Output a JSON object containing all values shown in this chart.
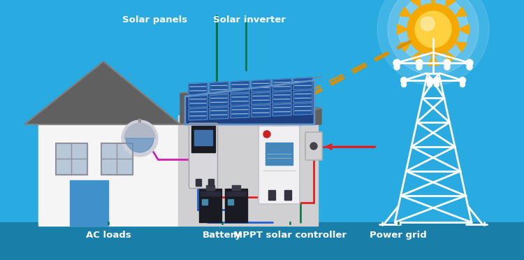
{
  "bg_color": "#29abe2",
  "bg_gradient_top": "#1a8fbf",
  "ground_color": "#1a7fa8",
  "labels": {
    "solar_panels": "Solar panels",
    "solar_inverter": "Solar inverter",
    "ac_loads": "AC loads",
    "battery": "Battery",
    "mppt": "MPPT solar controller",
    "power_grid": "Power grid"
  },
  "colors": {
    "house_wall": "#e8e8ea",
    "house_wall2": "#d0d0d2",
    "house_roof": "#606060",
    "house_roof_edge": "#888888",
    "solar_panel_bg": "#1e4080",
    "solar_panel_cell": "#2255a0",
    "solar_panel_highlight": "#c8dff0",
    "solar_panel_frame": "#6090c8",
    "sun_orange": "#f5a800",
    "sun_yellow": "#ffd040",
    "sun_white": "#ffffff",
    "sun_glow": "#e0f5ff",
    "wire_green": "#007040",
    "wire_blue": "#2060d0",
    "wire_red": "#e02020",
    "wire_magenta": "#d020b0",
    "wire_yellow_dash": "#d4900a",
    "tower_white": "#ffffff",
    "text_white": "#ffffff",
    "device_gray": "#c8c8cc",
    "device_dark": "#1a1a1a",
    "device_white": "#f0f0f2",
    "battery_body": "#1a1a22",
    "battery_top": "#333340",
    "window_light": "#b8c8d8",
    "window_frame": "#9090a0",
    "door_blue": "#4090cc",
    "lamp_body": "#d0d0d8",
    "lamp_shade": "#b0b8c8",
    "lamp_blue": "#6090c0"
  }
}
